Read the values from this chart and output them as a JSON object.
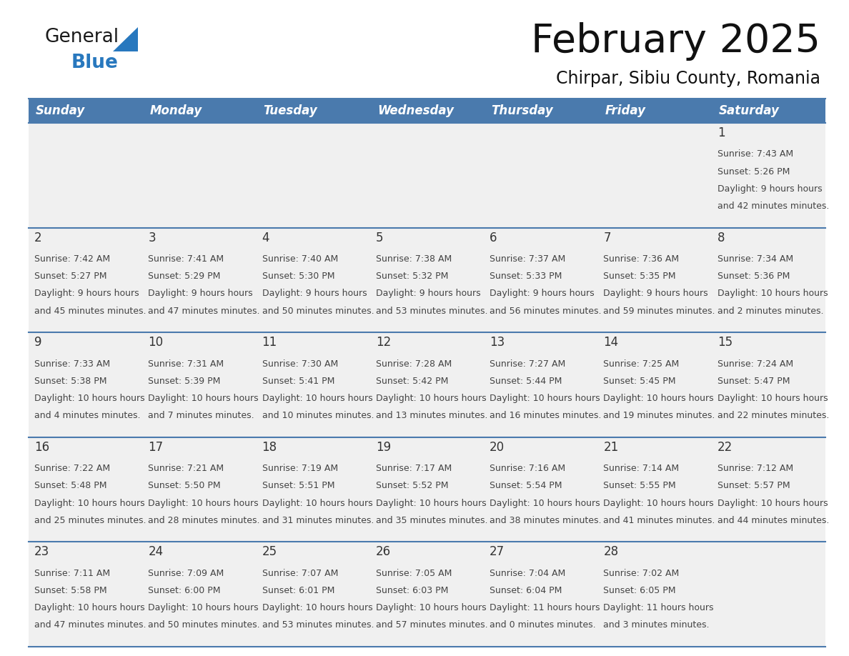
{
  "title": "February 2025",
  "subtitle": "Chirpar, Sibiu County, Romania",
  "days_of_week": [
    "Sunday",
    "Monday",
    "Tuesday",
    "Wednesday",
    "Thursday",
    "Friday",
    "Saturday"
  ],
  "header_bg": "#4a7aad",
  "header_text": "#ffffff",
  "row_bg_odd": "#f0f0f0",
  "row_bg_even": "#f8f8f8",
  "grid_line_color": "#4a7aad",
  "text_color": "#444444",
  "day_num_color": "#333333",
  "logo_general_color": "#1a1a1a",
  "logo_blue_color": "#2878be",
  "calendar_data": [
    [
      null,
      null,
      null,
      null,
      null,
      null,
      {
        "day": 1,
        "sunrise": "7:43 AM",
        "sunset": "5:26 PM",
        "daylight": "9 hours and 42 minutes"
      }
    ],
    [
      {
        "day": 2,
        "sunrise": "7:42 AM",
        "sunset": "5:27 PM",
        "daylight": "9 hours and 45 minutes"
      },
      {
        "day": 3,
        "sunrise": "7:41 AM",
        "sunset": "5:29 PM",
        "daylight": "9 hours and 47 minutes"
      },
      {
        "day": 4,
        "sunrise": "7:40 AM",
        "sunset": "5:30 PM",
        "daylight": "9 hours and 50 minutes"
      },
      {
        "day": 5,
        "sunrise": "7:38 AM",
        "sunset": "5:32 PM",
        "daylight": "9 hours and 53 minutes"
      },
      {
        "day": 6,
        "sunrise": "7:37 AM",
        "sunset": "5:33 PM",
        "daylight": "9 hours and 56 minutes"
      },
      {
        "day": 7,
        "sunrise": "7:36 AM",
        "sunset": "5:35 PM",
        "daylight": "9 hours and 59 minutes"
      },
      {
        "day": 8,
        "sunrise": "7:34 AM",
        "sunset": "5:36 PM",
        "daylight": "10 hours and 2 minutes"
      }
    ],
    [
      {
        "day": 9,
        "sunrise": "7:33 AM",
        "sunset": "5:38 PM",
        "daylight": "10 hours and 4 minutes"
      },
      {
        "day": 10,
        "sunrise": "7:31 AM",
        "sunset": "5:39 PM",
        "daylight": "10 hours and 7 minutes"
      },
      {
        "day": 11,
        "sunrise": "7:30 AM",
        "sunset": "5:41 PM",
        "daylight": "10 hours and 10 minutes"
      },
      {
        "day": 12,
        "sunrise": "7:28 AM",
        "sunset": "5:42 PM",
        "daylight": "10 hours and 13 minutes"
      },
      {
        "day": 13,
        "sunrise": "7:27 AM",
        "sunset": "5:44 PM",
        "daylight": "10 hours and 16 minutes"
      },
      {
        "day": 14,
        "sunrise": "7:25 AM",
        "sunset": "5:45 PM",
        "daylight": "10 hours and 19 minutes"
      },
      {
        "day": 15,
        "sunrise": "7:24 AM",
        "sunset": "5:47 PM",
        "daylight": "10 hours and 22 minutes"
      }
    ],
    [
      {
        "day": 16,
        "sunrise": "7:22 AM",
        "sunset": "5:48 PM",
        "daylight": "10 hours and 25 minutes"
      },
      {
        "day": 17,
        "sunrise": "7:21 AM",
        "sunset": "5:50 PM",
        "daylight": "10 hours and 28 minutes"
      },
      {
        "day": 18,
        "sunrise": "7:19 AM",
        "sunset": "5:51 PM",
        "daylight": "10 hours and 31 minutes"
      },
      {
        "day": 19,
        "sunrise": "7:17 AM",
        "sunset": "5:52 PM",
        "daylight": "10 hours and 35 minutes"
      },
      {
        "day": 20,
        "sunrise": "7:16 AM",
        "sunset": "5:54 PM",
        "daylight": "10 hours and 38 minutes"
      },
      {
        "day": 21,
        "sunrise": "7:14 AM",
        "sunset": "5:55 PM",
        "daylight": "10 hours and 41 minutes"
      },
      {
        "day": 22,
        "sunrise": "7:12 AM",
        "sunset": "5:57 PM",
        "daylight": "10 hours and 44 minutes"
      }
    ],
    [
      {
        "day": 23,
        "sunrise": "7:11 AM",
        "sunset": "5:58 PM",
        "daylight": "10 hours and 47 minutes"
      },
      {
        "day": 24,
        "sunrise": "7:09 AM",
        "sunset": "6:00 PM",
        "daylight": "10 hours and 50 minutes"
      },
      {
        "day": 25,
        "sunrise": "7:07 AM",
        "sunset": "6:01 PM",
        "daylight": "10 hours and 53 minutes"
      },
      {
        "day": 26,
        "sunrise": "7:05 AM",
        "sunset": "6:03 PM",
        "daylight": "10 hours and 57 minutes"
      },
      {
        "day": 27,
        "sunrise": "7:04 AM",
        "sunset": "6:04 PM",
        "daylight": "11 hours and 0 minutes"
      },
      {
        "day": 28,
        "sunrise": "7:02 AM",
        "sunset": "6:05 PM",
        "daylight": "11 hours and 3 minutes"
      },
      null
    ]
  ]
}
